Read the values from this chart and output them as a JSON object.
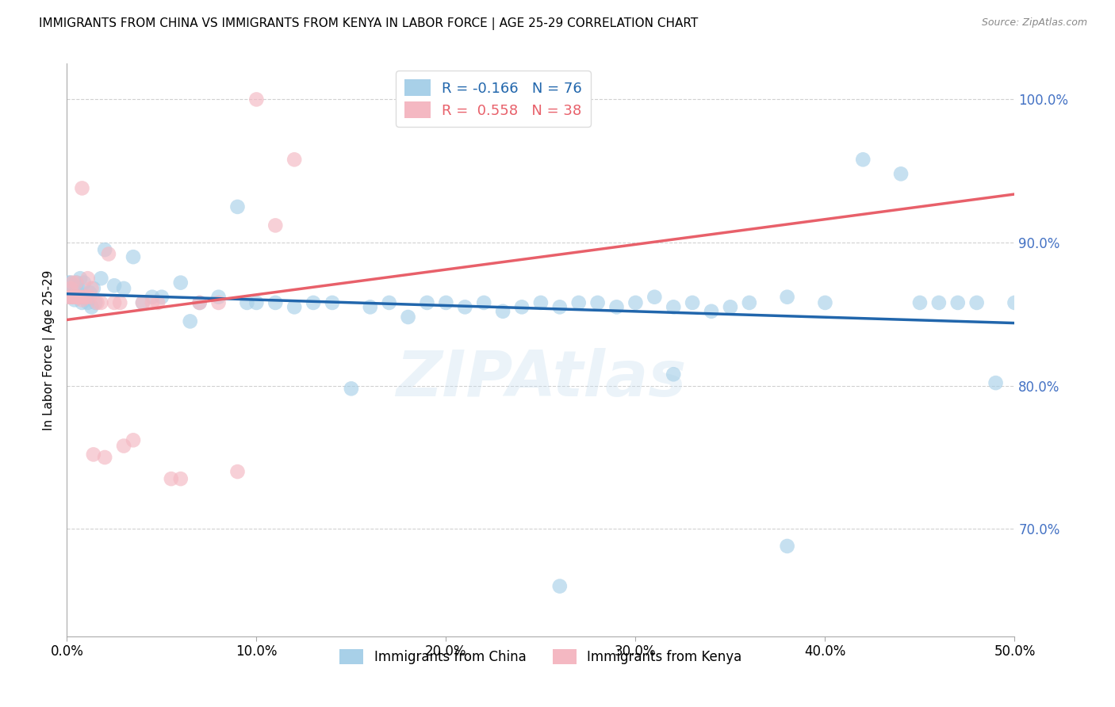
{
  "title": "IMMIGRANTS FROM CHINA VS IMMIGRANTS FROM KENYA IN LABOR FORCE | AGE 25-29 CORRELATION CHART",
  "source": "Source: ZipAtlas.com",
  "ylabel": "In Labor Force | Age 25-29",
  "xlim": [
    0.0,
    0.5
  ],
  "ylim": [
    0.625,
    1.025
  ],
  "yticks": [
    0.7,
    0.8,
    0.9,
    1.0
  ],
  "xticks": [
    0.0,
    0.1,
    0.2,
    0.3,
    0.4,
    0.5
  ],
  "china_color": "#a8d0e8",
  "kenya_color": "#f4b8c2",
  "china_R": -0.166,
  "china_N": 76,
  "kenya_R": 0.558,
  "kenya_N": 38,
  "china_line_color": "#2166ac",
  "kenya_line_color": "#e8606a",
  "watermark": "ZIPAtlas",
  "china_label": "Immigrants from China",
  "kenya_label": "Immigrants from Kenya",
  "china_x": [
    0.001,
    0.002,
    0.002,
    0.003,
    0.003,
    0.004,
    0.004,
    0.005,
    0.005,
    0.006,
    0.006,
    0.007,
    0.007,
    0.008,
    0.008,
    0.009,
    0.01,
    0.011,
    0.012,
    0.013,
    0.014,
    0.015,
    0.018,
    0.02,
    0.025,
    0.03,
    0.035,
    0.04,
    0.045,
    0.05,
    0.06,
    0.065,
    0.07,
    0.08,
    0.09,
    0.095,
    0.1,
    0.11,
    0.12,
    0.13,
    0.14,
    0.15,
    0.16,
    0.17,
    0.18,
    0.19,
    0.2,
    0.21,
    0.22,
    0.23,
    0.24,
    0.25,
    0.26,
    0.27,
    0.28,
    0.29,
    0.3,
    0.31,
    0.32,
    0.33,
    0.34,
    0.35,
    0.36,
    0.38,
    0.4,
    0.42,
    0.44,
    0.45,
    0.46,
    0.47,
    0.48,
    0.49,
    0.5,
    0.32,
    0.26,
    0.38
  ],
  "china_y": [
    0.872,
    0.872,
    0.862,
    0.868,
    0.862,
    0.86,
    0.868,
    0.872,
    0.868,
    0.868,
    0.862,
    0.862,
    0.875,
    0.862,
    0.858,
    0.872,
    0.862,
    0.858,
    0.865,
    0.855,
    0.868,
    0.858,
    0.875,
    0.895,
    0.87,
    0.868,
    0.89,
    0.858,
    0.862,
    0.862,
    0.872,
    0.845,
    0.858,
    0.862,
    0.925,
    0.858,
    0.858,
    0.858,
    0.855,
    0.858,
    0.858,
    0.798,
    0.855,
    0.858,
    0.848,
    0.858,
    0.858,
    0.855,
    0.858,
    0.852,
    0.855,
    0.858,
    0.855,
    0.858,
    0.858,
    0.855,
    0.858,
    0.862,
    0.855,
    0.858,
    0.852,
    0.855,
    0.858,
    0.862,
    0.858,
    0.958,
    0.948,
    0.858,
    0.858,
    0.858,
    0.858,
    0.802,
    0.858,
    0.808,
    0.66,
    0.688
  ],
  "kenya_x": [
    0.001,
    0.002,
    0.002,
    0.003,
    0.003,
    0.004,
    0.005,
    0.005,
    0.006,
    0.006,
    0.007,
    0.008,
    0.008,
    0.009,
    0.01,
    0.011,
    0.012,
    0.013,
    0.014,
    0.016,
    0.018,
    0.02,
    0.022,
    0.025,
    0.028,
    0.03,
    0.035,
    0.04,
    0.045,
    0.048,
    0.055,
    0.06,
    0.07,
    0.08,
    0.09,
    0.1,
    0.11,
    0.12
  ],
  "kenya_y": [
    0.862,
    0.868,
    0.862,
    0.862,
    0.872,
    0.862,
    0.862,
    0.872,
    0.862,
    0.862,
    0.862,
    0.86,
    0.938,
    0.862,
    0.862,
    0.875,
    0.862,
    0.868,
    0.752,
    0.858,
    0.858,
    0.75,
    0.892,
    0.858,
    0.858,
    0.758,
    0.762,
    0.858,
    0.858,
    0.858,
    0.735,
    0.735,
    0.858,
    0.858,
    0.74,
    1.0,
    0.912,
    0.958
  ]
}
